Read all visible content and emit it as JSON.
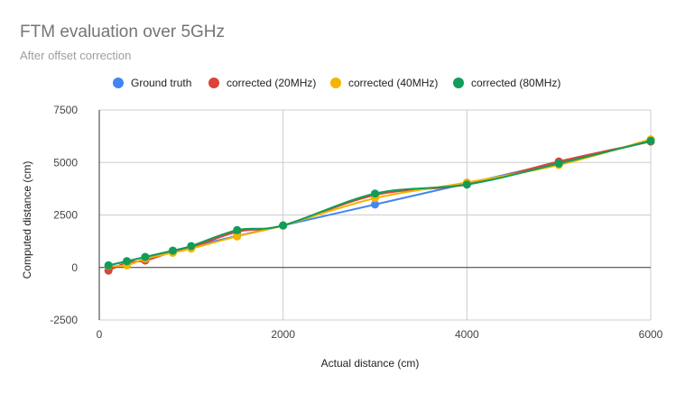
{
  "chart_data": {
    "type": "scatter",
    "title": "FTM evaluation over 5GHz",
    "subtitle": "After offset correction",
    "xlabel": "Actual distance (cm)",
    "ylabel": "Computed distance (cm)",
    "xlim": [
      0,
      6000
    ],
    "ylim": [
      -2500,
      7500
    ],
    "x_ticks": [
      0,
      2000,
      4000,
      6000
    ],
    "y_ticks": [
      -2500,
      0,
      2500,
      5000,
      7500
    ],
    "x_tick_labels": [
      "0",
      "2000",
      "4000",
      "6000"
    ],
    "y_tick_labels": [
      "-2500",
      "0",
      "2500",
      "5000",
      "7500"
    ],
    "grid": true,
    "legend_position": "top",
    "smooth_lines": true,
    "series": [
      {
        "name": "Ground truth",
        "color": "#4285f4",
        "points": [
          [
            100,
            100
          ],
          [
            300,
            300
          ],
          [
            500,
            500
          ],
          [
            800,
            800
          ],
          [
            1000,
            1000
          ],
          [
            1500,
            1500
          ],
          [
            2000,
            2000
          ],
          [
            3000,
            3000
          ],
          [
            4000,
            4000
          ],
          [
            5000,
            5000
          ],
          [
            6000,
            6000
          ]
        ]
      },
      {
        "name": "corrected (20MHz)",
        "color": "#db4437",
        "points": [
          [
            100,
            -150
          ],
          [
            300,
            230
          ],
          [
            500,
            330
          ],
          [
            800,
            750
          ],
          [
            1000,
            950
          ],
          [
            1500,
            1700
          ],
          [
            2000,
            2000
          ],
          [
            3000,
            3450
          ],
          [
            4000,
            3950
          ],
          [
            5000,
            5050
          ],
          [
            6000,
            6000
          ]
        ]
      },
      {
        "name": "corrected (40MHz)",
        "color": "#f4b400",
        "points": [
          [
            100,
            80
          ],
          [
            300,
            100
          ],
          [
            500,
            420
          ],
          [
            800,
            700
          ],
          [
            1000,
            900
          ],
          [
            1500,
            1480
          ],
          [
            2000,
            2000
          ],
          [
            3000,
            3300
          ],
          [
            4000,
            4050
          ],
          [
            5000,
            4880
          ],
          [
            6000,
            6100
          ]
        ]
      },
      {
        "name": "corrected (80MHz)",
        "color": "#0f9d58",
        "points": [
          [
            100,
            100
          ],
          [
            300,
            300
          ],
          [
            500,
            500
          ],
          [
            800,
            800
          ],
          [
            1000,
            1020
          ],
          [
            1500,
            1780
          ],
          [
            2000,
            2000
          ],
          [
            3000,
            3520
          ],
          [
            4000,
            3950
          ],
          [
            5000,
            4950
          ],
          [
            6000,
            6030
          ]
        ]
      }
    ]
  }
}
